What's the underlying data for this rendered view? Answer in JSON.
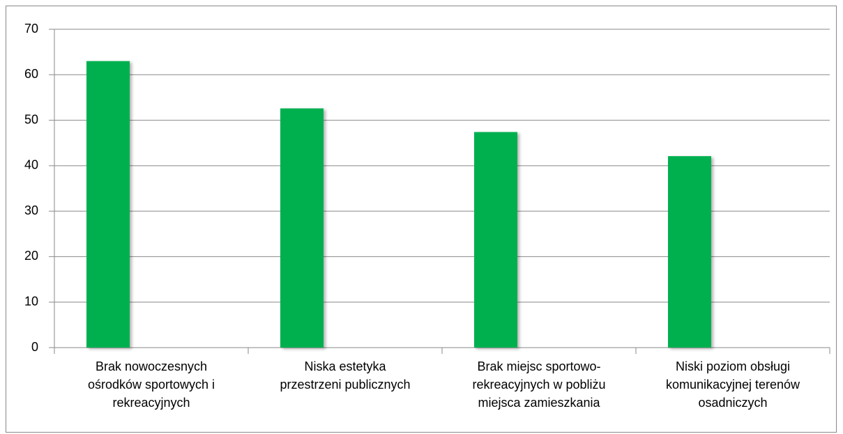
{
  "chart_data": {
    "type": "bar",
    "categories": [
      [
        "Brak nowoczesnych",
        "ośrodków sportowych i",
        "rekreacyjnych"
      ],
      [
        "Niska estetyka",
        "przestrzeni publicznych"
      ],
      [
        "Brak miejsc sportowo-",
        "rekreacyjnych w pobliżu",
        "miejsca zamieszkania"
      ],
      [
        "Niski poziom obsługi",
        "komunikacyjnej terenów",
        "osadniczych"
      ]
    ],
    "values": [
      63,
      52.6,
      47.4,
      42.1
    ],
    "color": "#00b050",
    "ylim": [
      0,
      70
    ],
    "yticks": [
      0,
      10,
      20,
      30,
      40,
      50,
      60,
      70
    ],
    "grid": true
  }
}
